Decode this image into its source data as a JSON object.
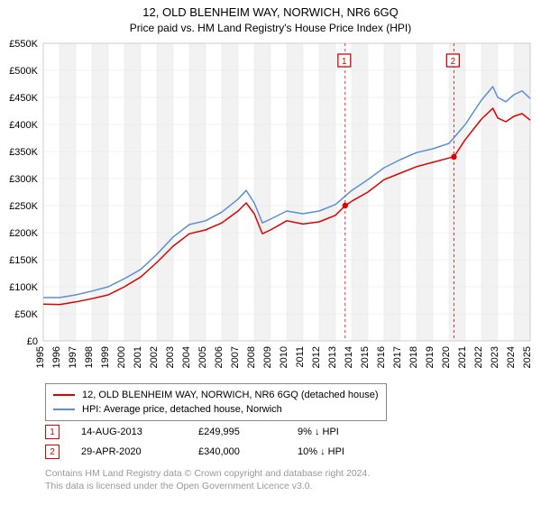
{
  "title": "12, OLD BLENHEIM WAY, NORWICH, NR6 6GQ",
  "subtitle": "Price paid vs. HM Land Registry's House Price Index (HPI)",
  "chart": {
    "type": "line",
    "plot_background": "#ffffff",
    "alt_band_color": "#f2f2f2",
    "grid_color": "#e6e6e6",
    "axis_color": "#888888",
    "x_start": 1995,
    "x_end": 2025,
    "x_tick_step": 1,
    "y_start": 0,
    "y_end": 550000,
    "y_tick_step": 50000,
    "y_tick_labels": [
      "£0",
      "£50K",
      "£100K",
      "£150K",
      "£200K",
      "£250K",
      "£300K",
      "£350K",
      "£400K",
      "£450K",
      "£500K",
      "£550K"
    ],
    "x_tick_labels": [
      "1995",
      "1996",
      "1997",
      "1998",
      "1999",
      "2000",
      "2001",
      "2002",
      "2003",
      "2004",
      "2005",
      "2006",
      "2007",
      "2008",
      "2009",
      "2010",
      "2011",
      "2012",
      "2013",
      "2014",
      "2015",
      "2016",
      "2017",
      "2018",
      "2019",
      "2020",
      "2021",
      "2022",
      "2023",
      "2024",
      "2025"
    ],
    "series": [
      {
        "id": "property",
        "label": "12, OLD BLENHEIM WAY, NORWICH, NR6 6GQ (detached house)",
        "color": "#e00000",
        "line_width": 1.5,
        "points": [
          [
            1995,
            68000
          ],
          [
            1996,
            67000
          ],
          [
            1997,
            72000
          ],
          [
            1998,
            78000
          ],
          [
            1999,
            85000
          ],
          [
            2000,
            100000
          ],
          [
            2001,
            118000
          ],
          [
            2002,
            145000
          ],
          [
            2003,
            175000
          ],
          [
            2004,
            198000
          ],
          [
            2005,
            205000
          ],
          [
            2006,
            218000
          ],
          [
            2007,
            240000
          ],
          [
            2007.5,
            255000
          ],
          [
            2008,
            235000
          ],
          [
            2008.5,
            198000
          ],
          [
            2009,
            205000
          ],
          [
            2010,
            222000
          ],
          [
            2011,
            216000
          ],
          [
            2012,
            220000
          ],
          [
            2013,
            232000
          ],
          [
            2013.6,
            249995
          ],
          [
            2014,
            258000
          ],
          [
            2015,
            275000
          ],
          [
            2016,
            298000
          ],
          [
            2017,
            310000
          ],
          [
            2018,
            322000
          ],
          [
            2019,
            330000
          ],
          [
            2020,
            338000
          ],
          [
            2020.3,
            340000
          ],
          [
            2021,
            372000
          ],
          [
            2022,
            410000
          ],
          [
            2022.7,
            430000
          ],
          [
            2023,
            412000
          ],
          [
            2023.5,
            405000
          ],
          [
            2024,
            415000
          ],
          [
            2024.5,
            420000
          ],
          [
            2025,
            408000
          ]
        ]
      },
      {
        "id": "hpi",
        "label": "HPI: Average price, detached house, Norwich",
        "color": "#5b8fd6",
        "line_width": 1.5,
        "points": [
          [
            1995,
            80000
          ],
          [
            1996,
            80000
          ],
          [
            1997,
            85000
          ],
          [
            1998,
            92000
          ],
          [
            1999,
            100000
          ],
          [
            2000,
            115000
          ],
          [
            2001,
            132000
          ],
          [
            2002,
            160000
          ],
          [
            2003,
            192000
          ],
          [
            2004,
            215000
          ],
          [
            2005,
            222000
          ],
          [
            2006,
            238000
          ],
          [
            2007,
            262000
          ],
          [
            2007.5,
            278000
          ],
          [
            2008,
            255000
          ],
          [
            2008.5,
            218000
          ],
          [
            2009,
            225000
          ],
          [
            2010,
            240000
          ],
          [
            2011,
            235000
          ],
          [
            2012,
            240000
          ],
          [
            2013,
            252000
          ],
          [
            2014,
            278000
          ],
          [
            2015,
            298000
          ],
          [
            2016,
            320000
          ],
          [
            2017,
            335000
          ],
          [
            2018,
            348000
          ],
          [
            2019,
            355000
          ],
          [
            2020,
            365000
          ],
          [
            2021,
            400000
          ],
          [
            2022,
            445000
          ],
          [
            2022.7,
            470000
          ],
          [
            2023,
            450000
          ],
          [
            2023.5,
            442000
          ],
          [
            2024,
            455000
          ],
          [
            2024.5,
            462000
          ],
          [
            2025,
            448000
          ]
        ]
      }
    ],
    "sale_markers": [
      {
        "n": "1",
        "x": 2013.6,
        "y": 249995
      },
      {
        "n": "2",
        "x": 2020.3,
        "y": 340000
      }
    ]
  },
  "legend": {
    "items": [
      {
        "color": "#e00000",
        "label": "12, OLD BLENHEIM WAY, NORWICH, NR6 6GQ (detached house)"
      },
      {
        "color": "#5b8fd6",
        "label": "HPI: Average price, detached house, Norwich"
      }
    ]
  },
  "sales": [
    {
      "n": "1",
      "date": "14-AUG-2013",
      "price": "£249,995",
      "diff": "9% ↓ HPI"
    },
    {
      "n": "2",
      "date": "29-APR-2020",
      "price": "£340,000",
      "diff": "10% ↓ HPI"
    }
  ],
  "footnote_line1": "Contains HM Land Registry data © Crown copyright and database right 2024.",
  "footnote_line2": "This data is licensed under the Open Government Licence v3.0."
}
